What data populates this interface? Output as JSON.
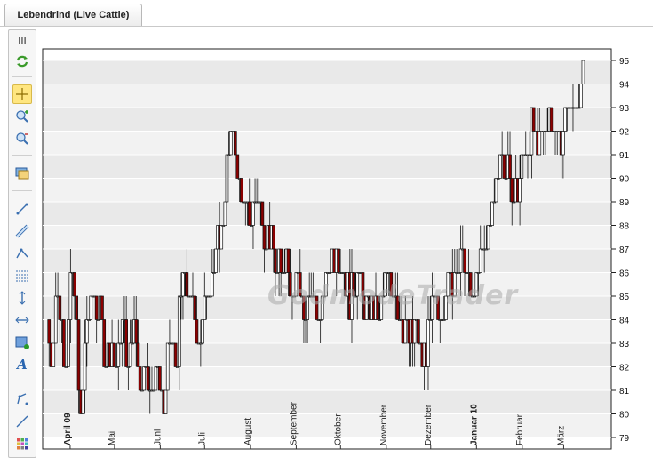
{
  "tab": {
    "title": "Lebendrind (Live Cattle)"
  },
  "watermark": "GodmodeTrader",
  "toolbar": {
    "items": [
      {
        "name": "grip-icon"
      },
      {
        "name": "refresh-icon"
      },
      {
        "name": "crosshair-icon"
      },
      {
        "name": "zoom-in-icon"
      },
      {
        "name": "zoom-out-icon"
      },
      {
        "name": "screen-icon"
      },
      {
        "name": "line-tool-icon"
      },
      {
        "name": "ruler-icon"
      },
      {
        "name": "polyline-icon"
      },
      {
        "name": "fibonacci-icon"
      },
      {
        "name": "vertical-line-icon"
      },
      {
        "name": "horizontal-line-icon"
      },
      {
        "name": "rectangle-icon"
      },
      {
        "name": "text-icon"
      },
      {
        "name": "pen-icon"
      },
      {
        "name": "ray-icon"
      },
      {
        "name": "palette-icon"
      }
    ]
  },
  "chart_data": {
    "type": "candlestick",
    "ylim": [
      79,
      95
    ],
    "yticks": [
      79,
      80,
      81,
      82,
      83,
      84,
      85,
      86,
      87,
      88,
      89,
      90,
      91,
      92,
      93,
      94,
      95
    ],
    "month_labels": [
      {
        "label": "April 09",
        "day": 15,
        "bold": true
      },
      {
        "label": "Mai",
        "day": 45,
        "bold": false
      },
      {
        "label": "Juni",
        "day": 76,
        "bold": false
      },
      {
        "label": "Juli",
        "day": 106,
        "bold": false
      },
      {
        "label": "August",
        "day": 137,
        "bold": false
      },
      {
        "label": "September",
        "day": 168,
        "bold": false
      },
      {
        "label": "Oktober",
        "day": 198,
        "bold": false
      },
      {
        "label": "November",
        "day": 229,
        "bold": false
      },
      {
        "label": "Dezember",
        "day": 259,
        "bold": false
      },
      {
        "label": "Januar 10",
        "day": 290,
        "bold": true
      },
      {
        "label": "Februar",
        "day": 321,
        "bold": false
      },
      {
        "label": "März",
        "day": 349,
        "bold": false
      }
    ],
    "day_range": [
      0,
      380
    ],
    "waypoints": [
      [
        0,
        84
      ],
      [
        3,
        82
      ],
      [
        6,
        85
      ],
      [
        10,
        84
      ],
      [
        13,
        82
      ],
      [
        16,
        86
      ],
      [
        20,
        84
      ],
      [
        23,
        80
      ],
      [
        27,
        84
      ],
      [
        31,
        85
      ],
      [
        36,
        84
      ],
      [
        40,
        82
      ],
      [
        44,
        83
      ],
      [
        47,
        82
      ],
      [
        51,
        84
      ],
      [
        55,
        82
      ],
      [
        59,
        84
      ],
      [
        63,
        81
      ],
      [
        67,
        82
      ],
      [
        71,
        81
      ],
      [
        75,
        82
      ],
      [
        79,
        80
      ],
      [
        83,
        83
      ],
      [
        87,
        82
      ],
      [
        92,
        86
      ],
      [
        96,
        85
      ],
      [
        100,
        84
      ],
      [
        104,
        83
      ],
      [
        108,
        85
      ],
      [
        113,
        86
      ],
      [
        118,
        88
      ],
      [
        123,
        91
      ],
      [
        126,
        92
      ],
      [
        129,
        90
      ],
      [
        133,
        89
      ],
      [
        137,
        88
      ],
      [
        142,
        89
      ],
      [
        147,
        88
      ],
      [
        152,
        87
      ],
      [
        157,
        86
      ],
      [
        162,
        87
      ],
      [
        166,
        85
      ],
      [
        170,
        86
      ],
      [
        175,
        84
      ],
      [
        180,
        85
      ],
      [
        185,
        84
      ],
      [
        190,
        86
      ],
      [
        196,
        87
      ],
      [
        201,
        86
      ],
      [
        205,
        85
      ],
      [
        210,
        86
      ],
      [
        215,
        84
      ],
      [
        220,
        85
      ],
      [
        225,
        84
      ],
      [
        230,
        86
      ],
      [
        236,
        85
      ],
      [
        240,
        84
      ],
      [
        245,
        83
      ],
      [
        250,
        84
      ],
      [
        254,
        82
      ],
      [
        258,
        83
      ],
      [
        262,
        85
      ],
      [
        266,
        84
      ],
      [
        270,
        85
      ],
      [
        276,
        86
      ],
      [
        280,
        87
      ],
      [
        284,
        86
      ],
      [
        288,
        85
      ],
      [
        292,
        86
      ],
      [
        296,
        87
      ],
      [
        300,
        88
      ],
      [
        304,
        90
      ],
      [
        308,
        91
      ],
      [
        312,
        90
      ],
      [
        316,
        89
      ],
      [
        320,
        90
      ],
      [
        324,
        91
      ],
      [
        328,
        92
      ],
      [
        332,
        91
      ],
      [
        336,
        92
      ],
      [
        340,
        93
      ],
      [
        344,
        92
      ],
      [
        348,
        92
      ],
      [
        352,
        93
      ],
      [
        356,
        93
      ],
      [
        360,
        94
      ],
      [
        363,
        94
      ]
    ]
  }
}
